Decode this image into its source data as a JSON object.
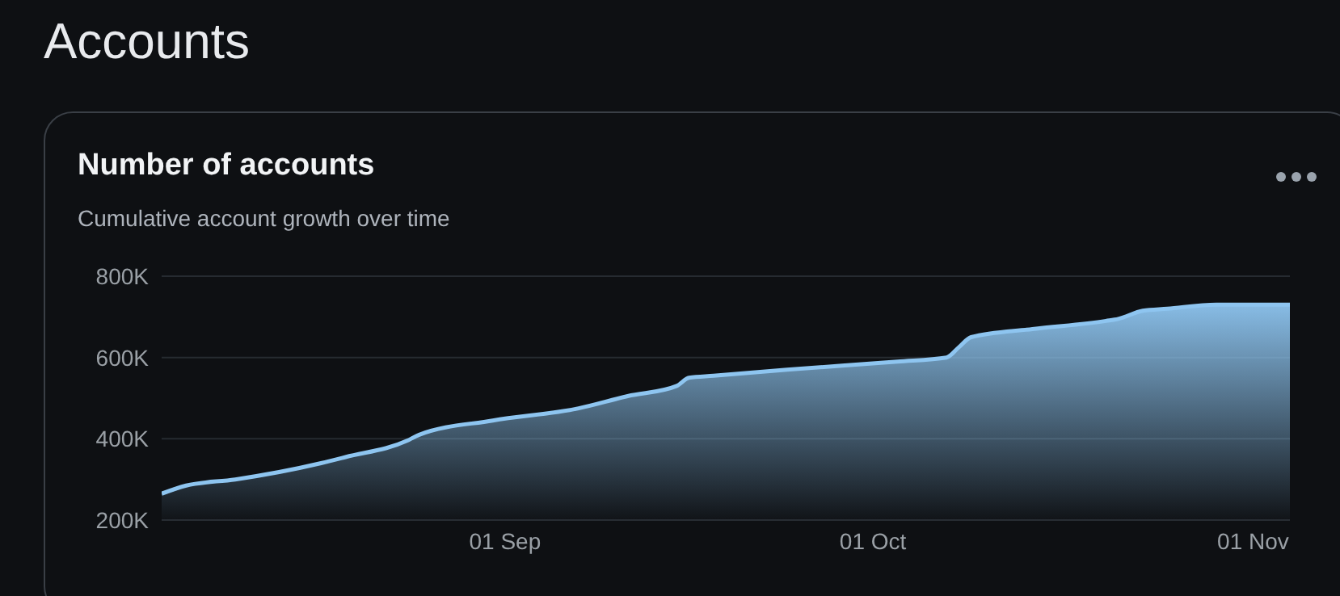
{
  "chart_data": {
    "type": "area",
    "title": "Number of accounts",
    "subtitle": "Cumulative account growth over time",
    "annotations": [
      "Accounts"
    ],
    "x": [
      "--08-04",
      "--08-06",
      "--08-10",
      "--08-17",
      "--08-19",
      "--08-24",
      "--08-25",
      "--08-31",
      "--09-07",
      "--09-11",
      "--09-15",
      "--09-16",
      "--09-18",
      "--09-24",
      "--10-03",
      "--10-07",
      "--10-08",
      "--10-09",
      "--10-14",
      "--10-20",
      "--10-21",
      "--10-23",
      "--10-25",
      "--10-29",
      "--11-03",
      "--11-04"
    ],
    "series": [
      {
        "color": "#8ec5f0",
        "values": [
          265000,
          285000,
          300000,
          340000,
          355000,
          395000,
          410000,
          445000,
          475000,
          505000,
          530000,
          550000,
          555000,
          570000,
          590000,
          600000,
          625000,
          650000,
          670000,
          690000,
          695000,
          715000,
          720000,
          730000,
          730000,
          730000
        ]
      }
    ],
    "xlim": [
      "--08-04",
      "--11-04"
    ],
    "xticks": [
      {
        "value": "--09-01",
        "label": "01 Sep"
      },
      {
        "value": "--10-01",
        "label": "01 Oct"
      },
      {
        "value": "--11-01",
        "label": "01 Nov"
      }
    ],
    "ylim": [
      200000,
      800000
    ],
    "yticks": [
      {
        "value": 200000,
        "label": "200K"
      },
      {
        "value": 400000,
        "label": "400K"
      },
      {
        "value": 600000,
        "label": "600K"
      },
      {
        "value": 800000,
        "label": "800K"
      }
    ],
    "grid": "y",
    "legend": false,
    "marker": "none",
    "line_style": "solid"
  }
}
